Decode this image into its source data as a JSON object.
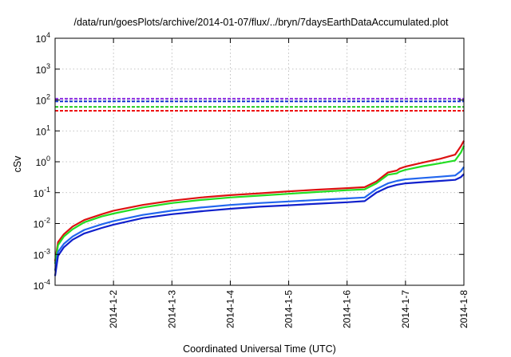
{
  "chart_data": {
    "type": "line",
    "title": "/data/run/goesPlots/archive/2014-01-07/flux/../bryn/7daysEarthDataAccumulated.plot",
    "xlabel": "Coordinated Universal Time (UTC)",
    "ylabel": "cSv",
    "yscale": "log",
    "ylim": [
      0.0001,
      10000
    ],
    "xlim": [
      0,
      7
    ],
    "grid": true,
    "y_ticks": [
      {
        "value": 0.0001,
        "base": "10",
        "exp": "-4"
      },
      {
        "value": 0.001,
        "base": "10",
        "exp": "-3"
      },
      {
        "value": 0.01,
        "base": "10",
        "exp": "-2"
      },
      {
        "value": 0.1,
        "base": "10",
        "exp": "-1"
      },
      {
        "value": 1,
        "base": "10",
        "exp": "0"
      },
      {
        "value": 10,
        "base": "10",
        "exp": "1"
      },
      {
        "value": 100,
        "base": "10",
        "exp": "2"
      },
      {
        "value": 1000,
        "base": "10",
        "exp": "3"
      },
      {
        "value": 10000,
        "base": "10",
        "exp": "4"
      }
    ],
    "x_ticks": [
      {
        "value": 1,
        "label": "2014-1-2"
      },
      {
        "value": 2,
        "label": "2014-1-3"
      },
      {
        "value": 3,
        "label": "2014-1-4"
      },
      {
        "value": 4,
        "label": "2014-1-5"
      },
      {
        "value": 5,
        "label": "2014-1-6"
      },
      {
        "value": 6,
        "label": "2014-1-7"
      },
      {
        "value": 7,
        "label": "2014-1-8"
      }
    ],
    "thresholds": [
      {
        "value": 110,
        "color": "#8a2be2"
      },
      {
        "value": 90,
        "color": "#1030d0"
      },
      {
        "value": 60,
        "color": "#22cc22"
      },
      {
        "value": 45,
        "color": "#ee1111"
      }
    ],
    "series": [
      {
        "color": "#dd1111",
        "x": [
          0,
          0.05,
          0.15,
          0.3,
          0.5,
          0.8,
          1.0,
          1.5,
          2.0,
          2.5,
          3.0,
          3.5,
          4.0,
          4.5,
          5.0,
          5.3,
          5.5,
          5.7,
          5.85,
          5.9,
          6.0,
          6.3,
          6.6,
          6.85,
          6.95,
          7.0
        ],
        "y": [
          0.0006,
          0.0025,
          0.0045,
          0.008,
          0.013,
          0.02,
          0.026,
          0.04,
          0.055,
          0.07,
          0.083,
          0.095,
          0.11,
          0.125,
          0.14,
          0.15,
          0.23,
          0.45,
          0.52,
          0.6,
          0.7,
          0.95,
          1.25,
          1.7,
          3.2,
          4.8
        ]
      },
      {
        "color": "#22dd22",
        "x": [
          0,
          0.05,
          0.15,
          0.3,
          0.5,
          0.8,
          1.0,
          1.5,
          2.0,
          2.5,
          3.0,
          3.5,
          4.0,
          4.5,
          5.0,
          5.3,
          5.5,
          5.7,
          5.85,
          5.9,
          6.0,
          6.3,
          6.6,
          6.85,
          6.95,
          7.0
        ],
        "y": [
          0.0005,
          0.002,
          0.0038,
          0.0065,
          0.011,
          0.017,
          0.021,
          0.033,
          0.046,
          0.058,
          0.07,
          0.08,
          0.092,
          0.105,
          0.12,
          0.128,
          0.2,
          0.38,
          0.42,
          0.48,
          0.55,
          0.72,
          0.9,
          1.1,
          2.0,
          3.3
        ]
      },
      {
        "color": "#2266ee",
        "x": [
          0,
          0.05,
          0.15,
          0.3,
          0.5,
          0.8,
          1.0,
          1.5,
          2.0,
          2.5,
          3.0,
          3.5,
          4.0,
          4.5,
          5.0,
          5.3,
          5.5,
          5.7,
          5.85,
          6.0,
          6.3,
          6.6,
          6.85,
          6.95,
          7.0
        ],
        "y": [
          0.0003,
          0.0012,
          0.0022,
          0.0038,
          0.0062,
          0.0095,
          0.012,
          0.019,
          0.026,
          0.033,
          0.04,
          0.046,
          0.052,
          0.058,
          0.065,
          0.07,
          0.13,
          0.2,
          0.24,
          0.27,
          0.3,
          0.33,
          0.36,
          0.5,
          0.68
        ]
      },
      {
        "color": "#1020cc",
        "x": [
          0,
          0.05,
          0.15,
          0.3,
          0.5,
          0.8,
          1.0,
          1.5,
          2.0,
          2.5,
          3.0,
          3.5,
          4.0,
          4.5,
          5.0,
          5.3,
          5.5,
          5.7,
          5.85,
          6.0,
          6.3,
          6.6,
          6.85,
          6.95,
          7.0
        ],
        "y": [
          0.0002,
          0.0009,
          0.0017,
          0.003,
          0.0048,
          0.0072,
          0.0092,
          0.015,
          0.02,
          0.025,
          0.03,
          0.035,
          0.039,
          0.044,
          0.049,
          0.053,
          0.1,
          0.15,
          0.18,
          0.2,
          0.22,
          0.24,
          0.26,
          0.32,
          0.4
        ]
      }
    ]
  }
}
